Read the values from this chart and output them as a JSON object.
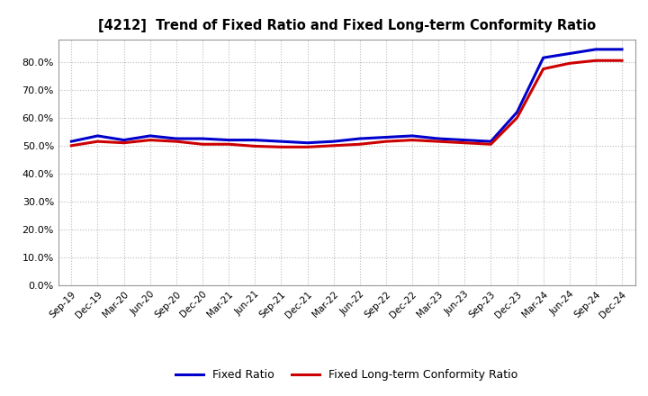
{
  "title": "[4212]  Trend of Fixed Ratio and Fixed Long-term Conformity Ratio",
  "labels": [
    "Sep-19",
    "Dec-19",
    "Mar-20",
    "Jun-20",
    "Sep-20",
    "Dec-20",
    "Mar-21",
    "Jun-21",
    "Sep-21",
    "Dec-21",
    "Mar-22",
    "Jun-22",
    "Sep-22",
    "Dec-22",
    "Mar-23",
    "Jun-23",
    "Sep-23",
    "Dec-23",
    "Mar-24",
    "Jun-24",
    "Sep-24",
    "Dec-24"
  ],
  "fixed_ratio": [
    51.5,
    53.5,
    52.0,
    53.5,
    52.5,
    52.5,
    52.0,
    52.0,
    51.5,
    51.0,
    51.5,
    52.5,
    53.0,
    53.5,
    52.5,
    52.0,
    51.5,
    62.0,
    81.5,
    83.0,
    84.5,
    84.5
  ],
  "fixed_lt_ratio": [
    50.0,
    51.5,
    51.0,
    52.0,
    51.5,
    50.5,
    50.5,
    49.8,
    49.5,
    49.5,
    50.0,
    50.5,
    51.5,
    52.0,
    51.5,
    51.0,
    50.5,
    60.0,
    77.5,
    79.5,
    80.5,
    80.5
  ],
  "fixed_ratio_color": "#0000CC",
  "fixed_lt_ratio_color": "#CC0000",
  "ylim": [
    0,
    88
  ],
  "yticks": [
    0,
    10,
    20,
    30,
    40,
    50,
    60,
    70,
    80
  ],
  "background_color": "#FFFFFF",
  "plot_bg_color": "#FFFFFF",
  "grid_color": "#BBBBBB",
  "line_width": 2.2
}
